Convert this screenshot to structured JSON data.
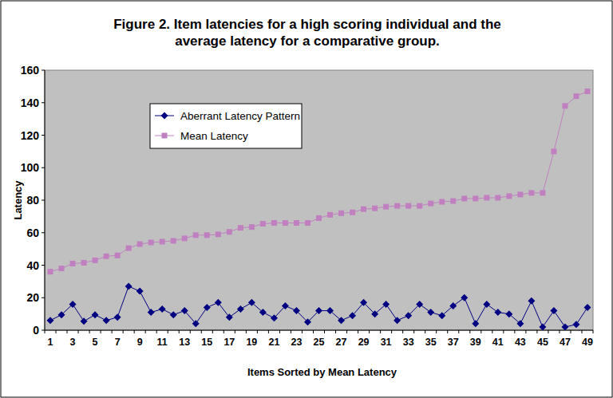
{
  "chart_data": {
    "type": "line",
    "title": "Figure 2. Item latencies for a high scoring individual and the average latency for a comparative group.",
    "x_label": "Items Sorted by Mean Latency",
    "y_label": "Latency",
    "categories": [
      "1",
      null,
      "3",
      null,
      "5",
      null,
      "7",
      null,
      "9",
      null,
      "11",
      null,
      "13",
      null,
      "15",
      null,
      "17",
      null,
      "19",
      null,
      "21",
      null,
      "23",
      null,
      "25",
      null,
      "27",
      null,
      "29",
      null,
      "31",
      null,
      "33",
      null,
      "35",
      null,
      "37",
      null,
      "39",
      null,
      "41",
      null,
      "43",
      null,
      "45",
      null,
      "47",
      null,
      "49"
    ],
    "series": [
      {
        "name": "Aberrant Latency Pattern",
        "color": "#000080",
        "marker": "diamond",
        "values": [
          6,
          9.5,
          16,
          5.5,
          9.5,
          6,
          8,
          27,
          24,
          11,
          13,
          9.5,
          12,
          4,
          14,
          17,
          8,
          13,
          17,
          11,
          7.5,
          15,
          12,
          5,
          12,
          12,
          6,
          9,
          17,
          10,
          16,
          6,
          9,
          16,
          11,
          9,
          15,
          20,
          4,
          16,
          11,
          10,
          4,
          18,
          2,
          12,
          2,
          3.5,
          14
        ]
      },
      {
        "name": "Mean Latency",
        "color": "#c080c0",
        "marker": "square",
        "values": [
          36,
          38,
          41,
          41.5,
          43,
          45.5,
          46,
          50.5,
          53,
          54,
          54.5,
          55,
          56.5,
          58.5,
          58.5,
          59,
          60.5,
          63,
          63.5,
          65.5,
          66,
          66,
          66,
          66,
          69,
          71,
          72,
          72.5,
          74.5,
          75,
          76,
          76.5,
          76.5,
          76.5,
          78,
          79,
          79.5,
          81,
          81,
          81.5,
          81.5,
          82.5,
          83.5,
          84.5,
          84.5,
          110,
          138,
          144,
          147
        ]
      }
    ],
    "ylim": [
      0,
      160
    ],
    "yticks": [
      0,
      20,
      40,
      60,
      80,
      100,
      120,
      140,
      160
    ],
    "grid": false,
    "legend": "top-left"
  }
}
